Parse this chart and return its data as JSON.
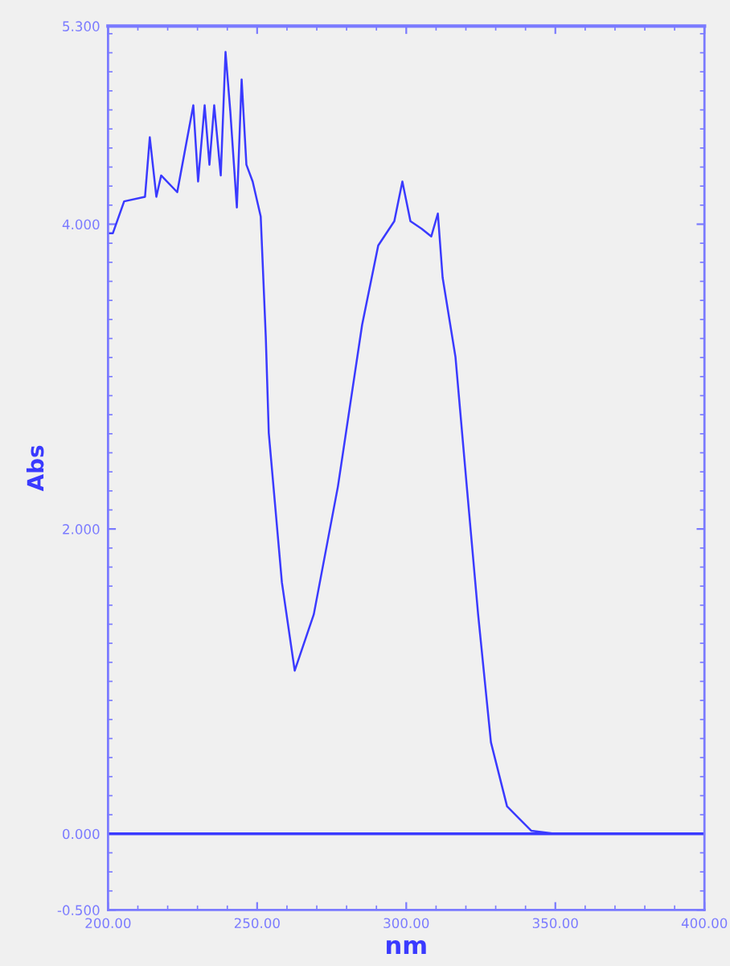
{
  "chart_data": {
    "type": "line",
    "xlabel": "nm",
    "ylabel": "Abs",
    "x": [
      200.5,
      201.6,
      205.4,
      212.4,
      214.0,
      216.2,
      217.8,
      223.2,
      228.6,
      230.2,
      232.4,
      234.0,
      235.6,
      237.8,
      239.4,
      241.0,
      243.2,
      244.8,
      246.4,
      248.5,
      251.2,
      252.9,
      253.9,
      258.3,
      262.6,
      269.0,
      277.1,
      285.2,
      290.6,
      296.0,
      298.7,
      301.4,
      305.2,
      308.4,
      310.6,
      312.2,
      316.5,
      320.3,
      324.1,
      328.4,
      333.8,
      341.9,
      350.0,
      368.8
    ],
    "series": [
      {
        "color": "#3a3aff",
        "values": [
          3.94,
          3.94,
          4.15,
          4.18,
          4.57,
          4.18,
          4.32,
          4.21,
          4.78,
          4.28,
          4.78,
          4.39,
          4.78,
          4.32,
          5.13,
          4.74,
          4.11,
          4.95,
          4.39,
          4.28,
          4.05,
          3.26,
          2.63,
          1.65,
          1.07,
          1.44,
          2.28,
          3.34,
          3.86,
          4.02,
          4.28,
          4.02,
          3.97,
          3.92,
          4.07,
          3.65,
          3.13,
          2.28,
          1.44,
          0.6,
          0.18,
          0.02,
          0.0,
          0.0
        ]
      }
    ],
    "xlim": [
      200,
      400
    ],
    "xticks": [
      {
        "value": 200,
        "label": "200.00"
      },
      {
        "value": 250,
        "label": "250.00"
      },
      {
        "value": 300,
        "label": "300.00"
      },
      {
        "value": 350,
        "label": "350.00"
      },
      {
        "value": 400,
        "label": "400.00"
      }
    ],
    "ylim": [
      -0.5,
      5.3
    ],
    "yticks": [
      {
        "value": -0.5,
        "label": "-0.500"
      },
      {
        "value": 0,
        "label": "0.000"
      },
      {
        "value": 2,
        "label": "2.000"
      },
      {
        "value": 4,
        "label": "4.000"
      },
      {
        "value": 5.3,
        "label": "5.300"
      }
    ],
    "ref_lines": [
      {
        "axis": "y",
        "value": 0,
        "color": "#3a3aff"
      }
    ],
    "grid": false,
    "legend": false
  }
}
